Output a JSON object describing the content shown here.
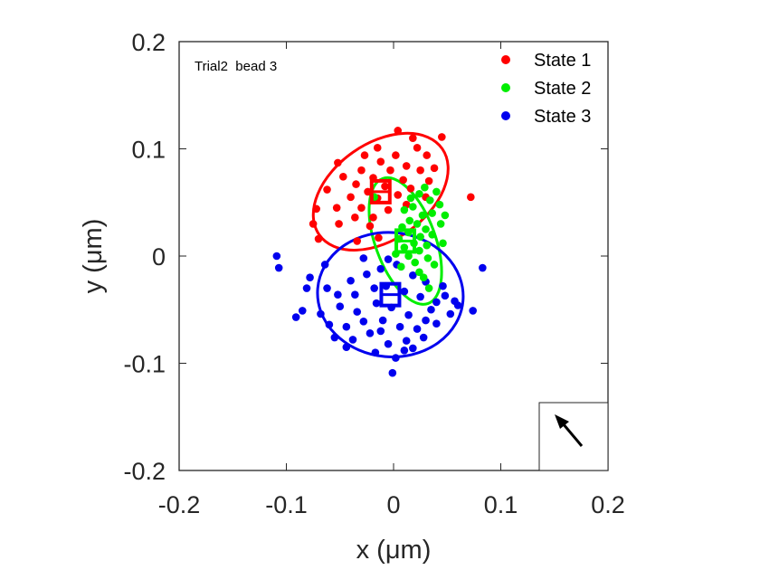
{
  "chart_data": {
    "type": "scatter",
    "annotation": "Trial2  bead 3",
    "xlabel": "x (μm)",
    "ylabel": "y (μm)",
    "xlim": [
      -0.2,
      0.2
    ],
    "ylim": [
      -0.2,
      0.2
    ],
    "x_ticks": [
      "-0.2",
      "-0.1",
      "0",
      "0.1",
      "0.2"
    ],
    "y_ticks": [
      "0.2",
      "0.1",
      "0",
      "-0.1",
      "-0.2"
    ],
    "x_tick_values": [
      -0.2,
      -0.1,
      0,
      0.1,
      0.2
    ],
    "y_tick_values": [
      0.2,
      0.1,
      0,
      -0.1,
      -0.2
    ],
    "grid": false,
    "legend_position": "top-right",
    "series": [
      {
        "name": "State 1",
        "color": "#ff0000",
        "center": [
          -0.012,
          0.06
        ],
        "ellipse": {
          "rx": 0.07,
          "ry": 0.045,
          "angle_deg": 35
        },
        "points": [
          [
            0.004,
            0.117
          ],
          [
            0.018,
            0.11
          ],
          [
            0.045,
            0.111
          ],
          [
            -0.015,
            0.101
          ],
          [
            0.022,
            0.101
          ],
          [
            -0.027,
            0.094
          ],
          [
            0.002,
            0.094
          ],
          [
            0.031,
            0.094
          ],
          [
            -0.052,
            0.087
          ],
          [
            -0.012,
            0.088
          ],
          [
            0.012,
            0.084
          ],
          [
            0.038,
            0.082
          ],
          [
            -0.03,
            0.08
          ],
          [
            -0.003,
            0.08
          ],
          [
            0.025,
            0.08
          ],
          [
            -0.047,
            0.074
          ],
          [
            -0.019,
            0.073
          ],
          [
            0.009,
            0.071
          ],
          [
            0.033,
            0.07
          ],
          [
            -0.035,
            0.067
          ],
          [
            -0.008,
            0.065
          ],
          [
            0.016,
            0.063
          ],
          [
            -0.062,
            0.062
          ],
          [
            -0.024,
            0.06
          ],
          [
            0.004,
            0.057
          ],
          [
            -0.04,
            0.055
          ],
          [
            -0.015,
            0.054
          ],
          [
            0.03,
            0.055
          ],
          [
            0.072,
            0.055
          ],
          [
            0.012,
            0.048
          ],
          [
            -0.03,
            0.045
          ],
          [
            -0.053,
            0.045
          ],
          [
            -0.005,
            0.043
          ],
          [
            -0.072,
            0.044
          ],
          [
            -0.019,
            0.036
          ],
          [
            -0.036,
            0.036
          ],
          [
            -0.051,
            0.03
          ],
          [
            -0.022,
            0.028
          ],
          [
            -0.014,
            0.017
          ],
          [
            -0.034,
            0.014
          ],
          [
            -0.07,
            0.016
          ],
          [
            -0.075,
            0.03
          ]
        ]
      },
      {
        "name": "State 2",
        "color": "#00ee00",
        "center": [
          0.011,
          0.014
        ],
        "ellipse": {
          "rx": 0.028,
          "ry": 0.062,
          "angle_deg": 20
        },
        "points": [
          [
            0.029,
            0.064
          ],
          [
            0.04,
            0.06
          ],
          [
            0.024,
            0.058
          ],
          [
            0.016,
            0.054
          ],
          [
            0.034,
            0.052
          ],
          [
            -0.018,
            0.055
          ],
          [
            0.018,
            0.046
          ],
          [
            0.043,
            0.048
          ],
          [
            0.01,
            0.043
          ],
          [
            0.036,
            0.04
          ],
          [
            0.027,
            0.038
          ],
          [
            0.048,
            0.038
          ],
          [
            0.015,
            0.033
          ],
          [
            0.022,
            0.03
          ],
          [
            0.044,
            0.03
          ],
          [
            0.008,
            0.027
          ],
          [
            0.03,
            0.025
          ],
          [
            0.014,
            0.022
          ],
          [
            0.036,
            0.02
          ],
          [
            0.025,
            0.018
          ],
          [
            0.005,
            0.016
          ],
          [
            0.019,
            0.012
          ],
          [
            0.031,
            0.01
          ],
          [
            0.046,
            0.012
          ],
          [
            0.01,
            0.008
          ],
          [
            0.024,
            0.005
          ],
          [
            0.002,
            0.002
          ],
          [
            0.014,
            0.0
          ],
          [
            0.032,
            -0.002
          ],
          [
            0.02,
            -0.006
          ],
          [
            0.038,
            -0.008
          ],
          [
            0.007,
            -0.01
          ],
          [
            0.024,
            -0.015
          ],
          [
            0.028,
            -0.02
          ],
          [
            0.033,
            -0.03
          ]
        ]
      },
      {
        "name": "State 3",
        "color": "#0000ee",
        "center": [
          -0.003,
          -0.036
        ],
        "ellipse": {
          "rx": 0.068,
          "ry": 0.058,
          "angle_deg": -5
        },
        "points": [
          [
            -0.109,
            0.0
          ],
          [
            -0.107,
            -0.011
          ],
          [
            -0.078,
            -0.02
          ],
          [
            -0.062,
            -0.03
          ],
          [
            -0.04,
            -0.023
          ],
          [
            -0.025,
            -0.017
          ],
          [
            -0.012,
            -0.012
          ],
          [
            0.003,
            -0.008
          ],
          [
            0.018,
            -0.018
          ],
          [
            0.03,
            -0.024
          ],
          [
            0.046,
            -0.028
          ],
          [
            0.083,
            -0.011
          ],
          [
            -0.081,
            -0.03
          ],
          [
            -0.052,
            -0.036
          ],
          [
            -0.036,
            -0.036
          ],
          [
            -0.018,
            -0.03
          ],
          [
            -0.007,
            -0.028
          ],
          [
            0.01,
            -0.033
          ],
          [
            0.025,
            -0.038
          ],
          [
            0.04,
            -0.043
          ],
          [
            -0.085,
            -0.051
          ],
          [
            -0.068,
            -0.054
          ],
          [
            -0.05,
            -0.047
          ],
          [
            -0.034,
            -0.052
          ],
          [
            -0.016,
            -0.044
          ],
          [
            -0.002,
            -0.048
          ],
          [
            0.014,
            -0.055
          ],
          [
            0.03,
            -0.06
          ],
          [
            0.06,
            -0.046
          ],
          [
            0.074,
            -0.051
          ],
          [
            -0.091,
            -0.057
          ],
          [
            -0.06,
            -0.064
          ],
          [
            -0.044,
            -0.066
          ],
          [
            -0.028,
            -0.061
          ],
          [
            -0.01,
            -0.06
          ],
          [
            0.006,
            -0.066
          ],
          [
            0.022,
            -0.068
          ],
          [
            0.04,
            -0.063
          ],
          [
            0.053,
            -0.054
          ],
          [
            -0.055,
            -0.076
          ],
          [
            -0.038,
            -0.078
          ],
          [
            -0.022,
            -0.072
          ],
          [
            -0.005,
            -0.082
          ],
          [
            0.012,
            -0.079
          ],
          [
            0.028,
            -0.076
          ],
          [
            -0.017,
            -0.09
          ],
          [
            0.002,
            -0.095
          ],
          [
            0.01,
            -0.088
          ],
          [
            -0.044,
            -0.085
          ],
          [
            -0.001,
            -0.109
          ],
          [
            0.018,
            -0.086
          ],
          [
            0.057,
            -0.042
          ],
          [
            -0.005,
            -0.003
          ],
          [
            -0.064,
            -0.008
          ],
          [
            0.048,
            -0.037
          ],
          [
            -0.028,
            -0.002
          ],
          [
            -0.012,
            -0.07
          ],
          [
            0.035,
            -0.05
          ]
        ]
      }
    ],
    "inset_arrow": {
      "direction": "up-left"
    }
  }
}
